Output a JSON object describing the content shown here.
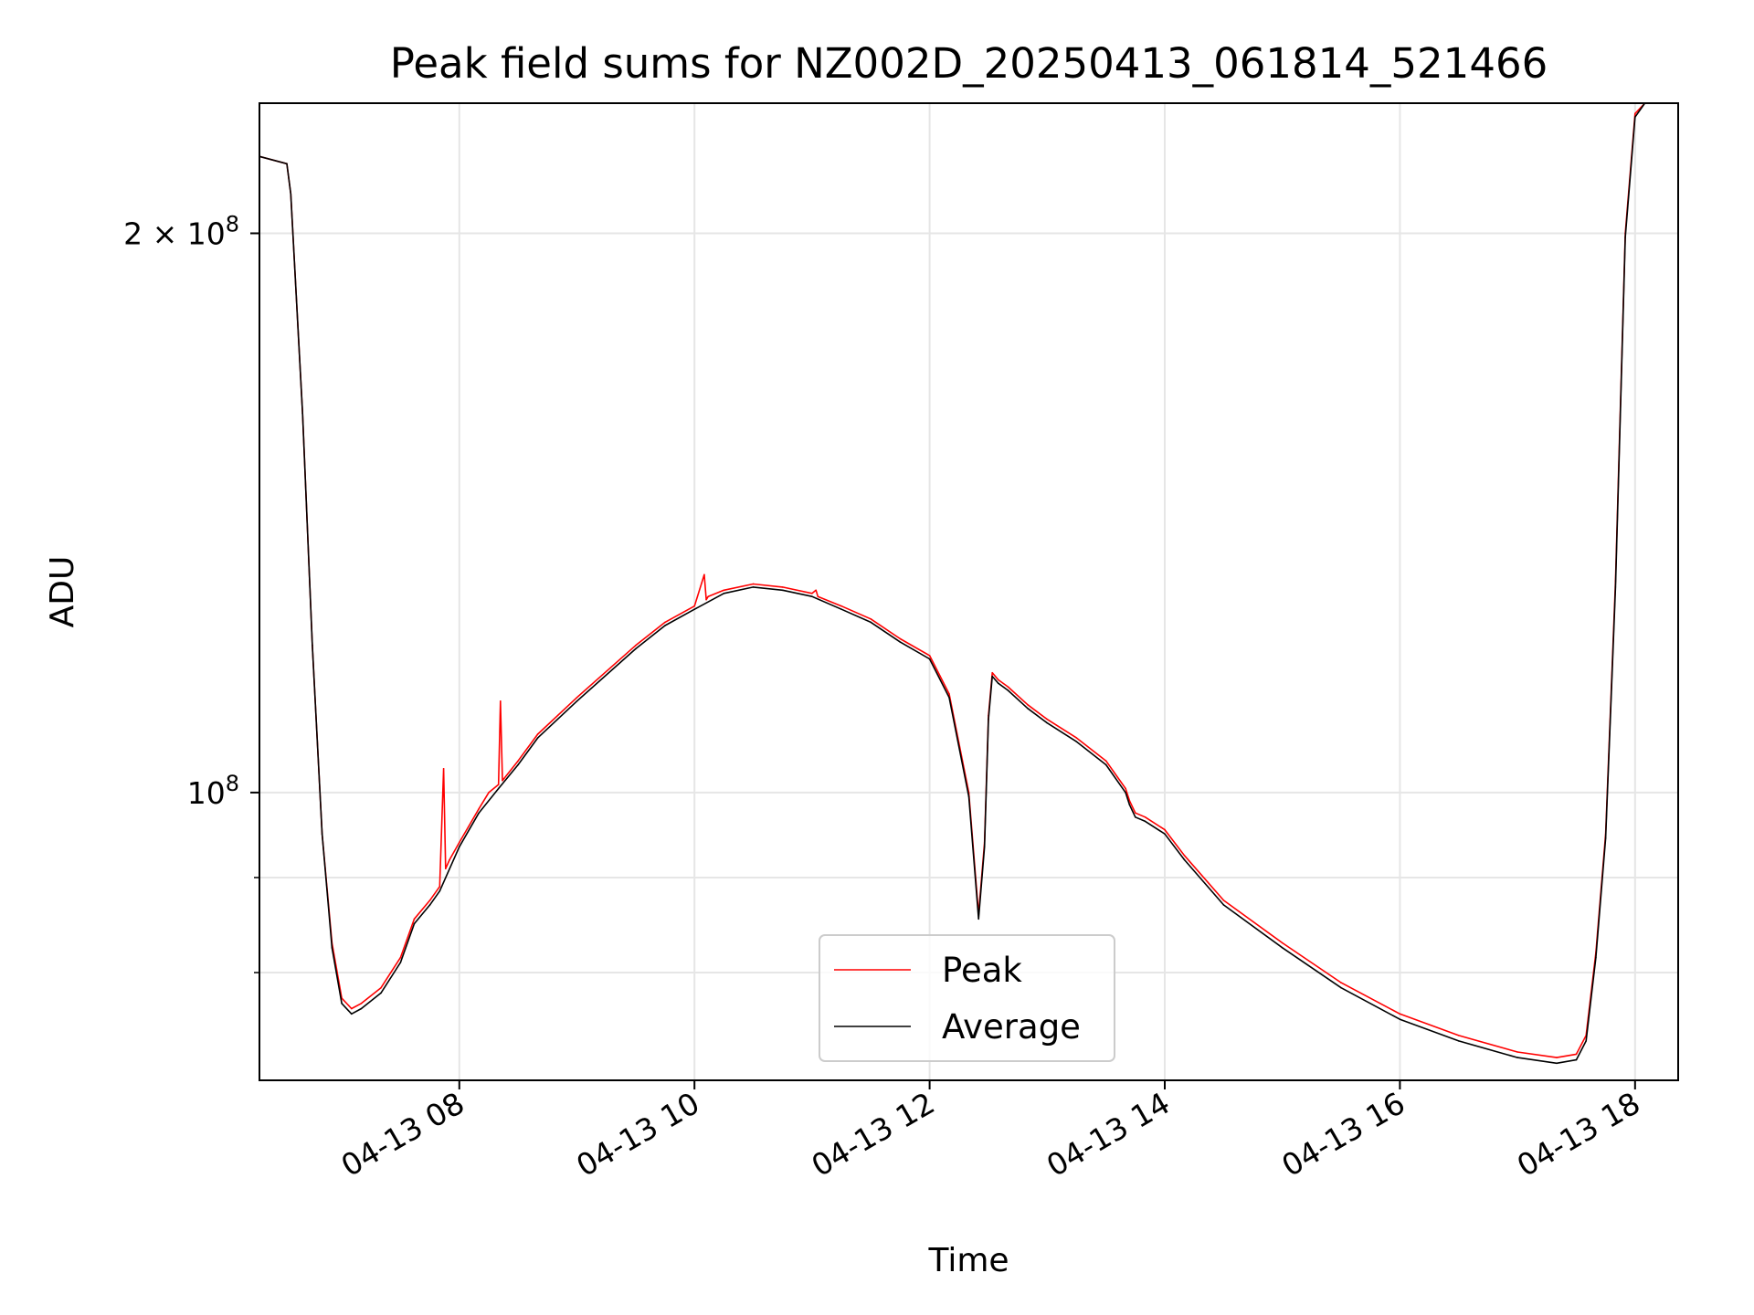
{
  "chart_data": {
    "type": "line",
    "title": "Peak field sums for NZ002D_20250413_061814_521466",
    "xlabel": "Time",
    "ylabel": "ADU",
    "x_scale": "time",
    "y_scale": "log",
    "xlim": [
      "04-13 06:18",
      "04-13 18:22"
    ],
    "ylim": [
      70000000,
      235000000
    ],
    "x_ticks": [
      {
        "t": "04-13 08:00",
        "label": "04-13 08"
      },
      {
        "t": "04-13 10:00",
        "label": "04-13 10"
      },
      {
        "t": "04-13 12:00",
        "label": "04-13 12"
      },
      {
        "t": "04-13 14:00",
        "label": "04-13 14"
      },
      {
        "t": "04-13 16:00",
        "label": "04-13 16"
      },
      {
        "t": "04-13 18:00",
        "label": "04-13 18"
      }
    ],
    "y_ticks_major": [
      {
        "value": 100000000,
        "base": "10",
        "exp": "8",
        "mantissa": ""
      },
      {
        "value": 200000000,
        "base": "10",
        "exp": "8",
        "mantissa": "2 × "
      }
    ],
    "y_ticks_minor": [
      80000000,
      90000000
    ],
    "grid": true,
    "legend": {
      "location": "lower center"
    },
    "colors": {
      "peak": "#ff0000",
      "average": "#000000",
      "grid": "#e6e6e6"
    },
    "series": [
      {
        "name": "Peak",
        "color": "#ff0000",
        "x": [
          "06:18",
          "06:32",
          "06:34",
          "06:40",
          "06:45",
          "06:50",
          "06:55",
          "07:00",
          "07:05",
          "07:10",
          "07:20",
          "07:30",
          "07:37",
          "07:45",
          "07:50",
          "07:52",
          "07:53",
          "07:55",
          "08:00",
          "08:10",
          "08:15",
          "08:20",
          "08:21",
          "08:22",
          "08:30",
          "08:40",
          "09:00",
          "09:30",
          "09:45",
          "10:00",
          "10:05",
          "10:06",
          "10:07",
          "10:15",
          "10:30",
          "10:45",
          "11:00",
          "11:02",
          "11:03",
          "11:15",
          "11:30",
          "11:45",
          "12:00",
          "12:10",
          "12:20",
          "12:25",
          "12:28",
          "12:30",
          "12:32",
          "12:35",
          "12:40",
          "12:50",
          "13:00",
          "13:15",
          "13:30",
          "13:40",
          "13:42",
          "13:45",
          "13:50",
          "14:00",
          "14:10",
          "14:30",
          "15:00",
          "15:30",
          "16:00",
          "16:30",
          "17:00",
          "17:20",
          "17:30",
          "17:35",
          "17:40",
          "17:45",
          "17:50",
          "17:55",
          "18:00",
          "18:05",
          "18:22"
        ],
        "values": [
          220000000,
          218000000,
          210000000,
          160000000,
          120000000,
          95000000,
          83000000,
          77500000,
          76500000,
          77000000,
          78500000,
          81500000,
          85500000,
          87500000,
          89000000,
          103000000,
          91000000,
          92000000,
          94000000,
          98000000,
          100000000,
          101000000,
          112000000,
          101500000,
          104000000,
          107500000,
          112500000,
          120000000,
          123500000,
          126000000,
          131000000,
          127000000,
          127500000,
          128500000,
          129500000,
          129000000,
          128000000,
          128500000,
          127500000,
          126000000,
          124000000,
          121000000,
          118500000,
          113000000,
          100000000,
          86000000,
          94000000,
          110000000,
          116000000,
          115000000,
          114000000,
          111500000,
          109500000,
          107000000,
          104000000,
          100500000,
          99000000,
          97500000,
          97000000,
          95500000,
          92500000,
          87500000,
          83000000,
          79000000,
          76000000,
          74000000,
          72500000,
          72000000,
          72300000,
          74000000,
          82000000,
          95000000,
          130000000,
          200000000,
          232000000,
          235000000,
          235000000
        ]
      },
      {
        "name": "Average",
        "color": "#000000",
        "x": [
          "06:18",
          "06:32",
          "06:34",
          "06:40",
          "06:45",
          "06:50",
          "06:55",
          "07:00",
          "07:05",
          "07:10",
          "07:20",
          "07:30",
          "07:37",
          "07:45",
          "07:50",
          "08:00",
          "08:10",
          "08:20",
          "08:30",
          "08:40",
          "09:00",
          "09:30",
          "09:45",
          "10:00",
          "10:15",
          "10:30",
          "10:45",
          "11:00",
          "11:15",
          "11:30",
          "11:45",
          "12:00",
          "12:10",
          "12:20",
          "12:25",
          "12:28",
          "12:30",
          "12:32",
          "12:35",
          "12:40",
          "12:50",
          "13:00",
          "13:15",
          "13:30",
          "13:40",
          "13:42",
          "13:45",
          "13:50",
          "14:00",
          "14:10",
          "14:30",
          "15:00",
          "15:30",
          "16:00",
          "16:30",
          "17:00",
          "17:20",
          "17:30",
          "17:35",
          "17:40",
          "17:45",
          "17:50",
          "17:55",
          "18:00",
          "18:05",
          "18:22"
        ],
        "values": [
          220000000,
          218000000,
          210000000,
          160000000,
          120000000,
          95000000,
          82500000,
          77000000,
          76000000,
          76500000,
          78000000,
          81000000,
          85000000,
          87000000,
          88500000,
          93500000,
          97500000,
          100500000,
          103500000,
          107000000,
          112000000,
          119500000,
          123000000,
          125500000,
          128000000,
          129000000,
          128500000,
          127500000,
          125500000,
          123500000,
          120500000,
          118000000,
          112500000,
          99500000,
          85500000,
          93500000,
          109500000,
          115500000,
          114500000,
          113500000,
          111000000,
          109000000,
          106500000,
          103500000,
          100000000,
          98500000,
          97000000,
          96500000,
          95000000,
          92000000,
          87000000,
          82500000,
          78500000,
          75500000,
          73500000,
          72000000,
          71500000,
          71800000,
          73500000,
          81500000,
          94500000,
          129000000,
          199000000,
          231000000,
          235000000,
          235000000
        ]
      }
    ]
  }
}
